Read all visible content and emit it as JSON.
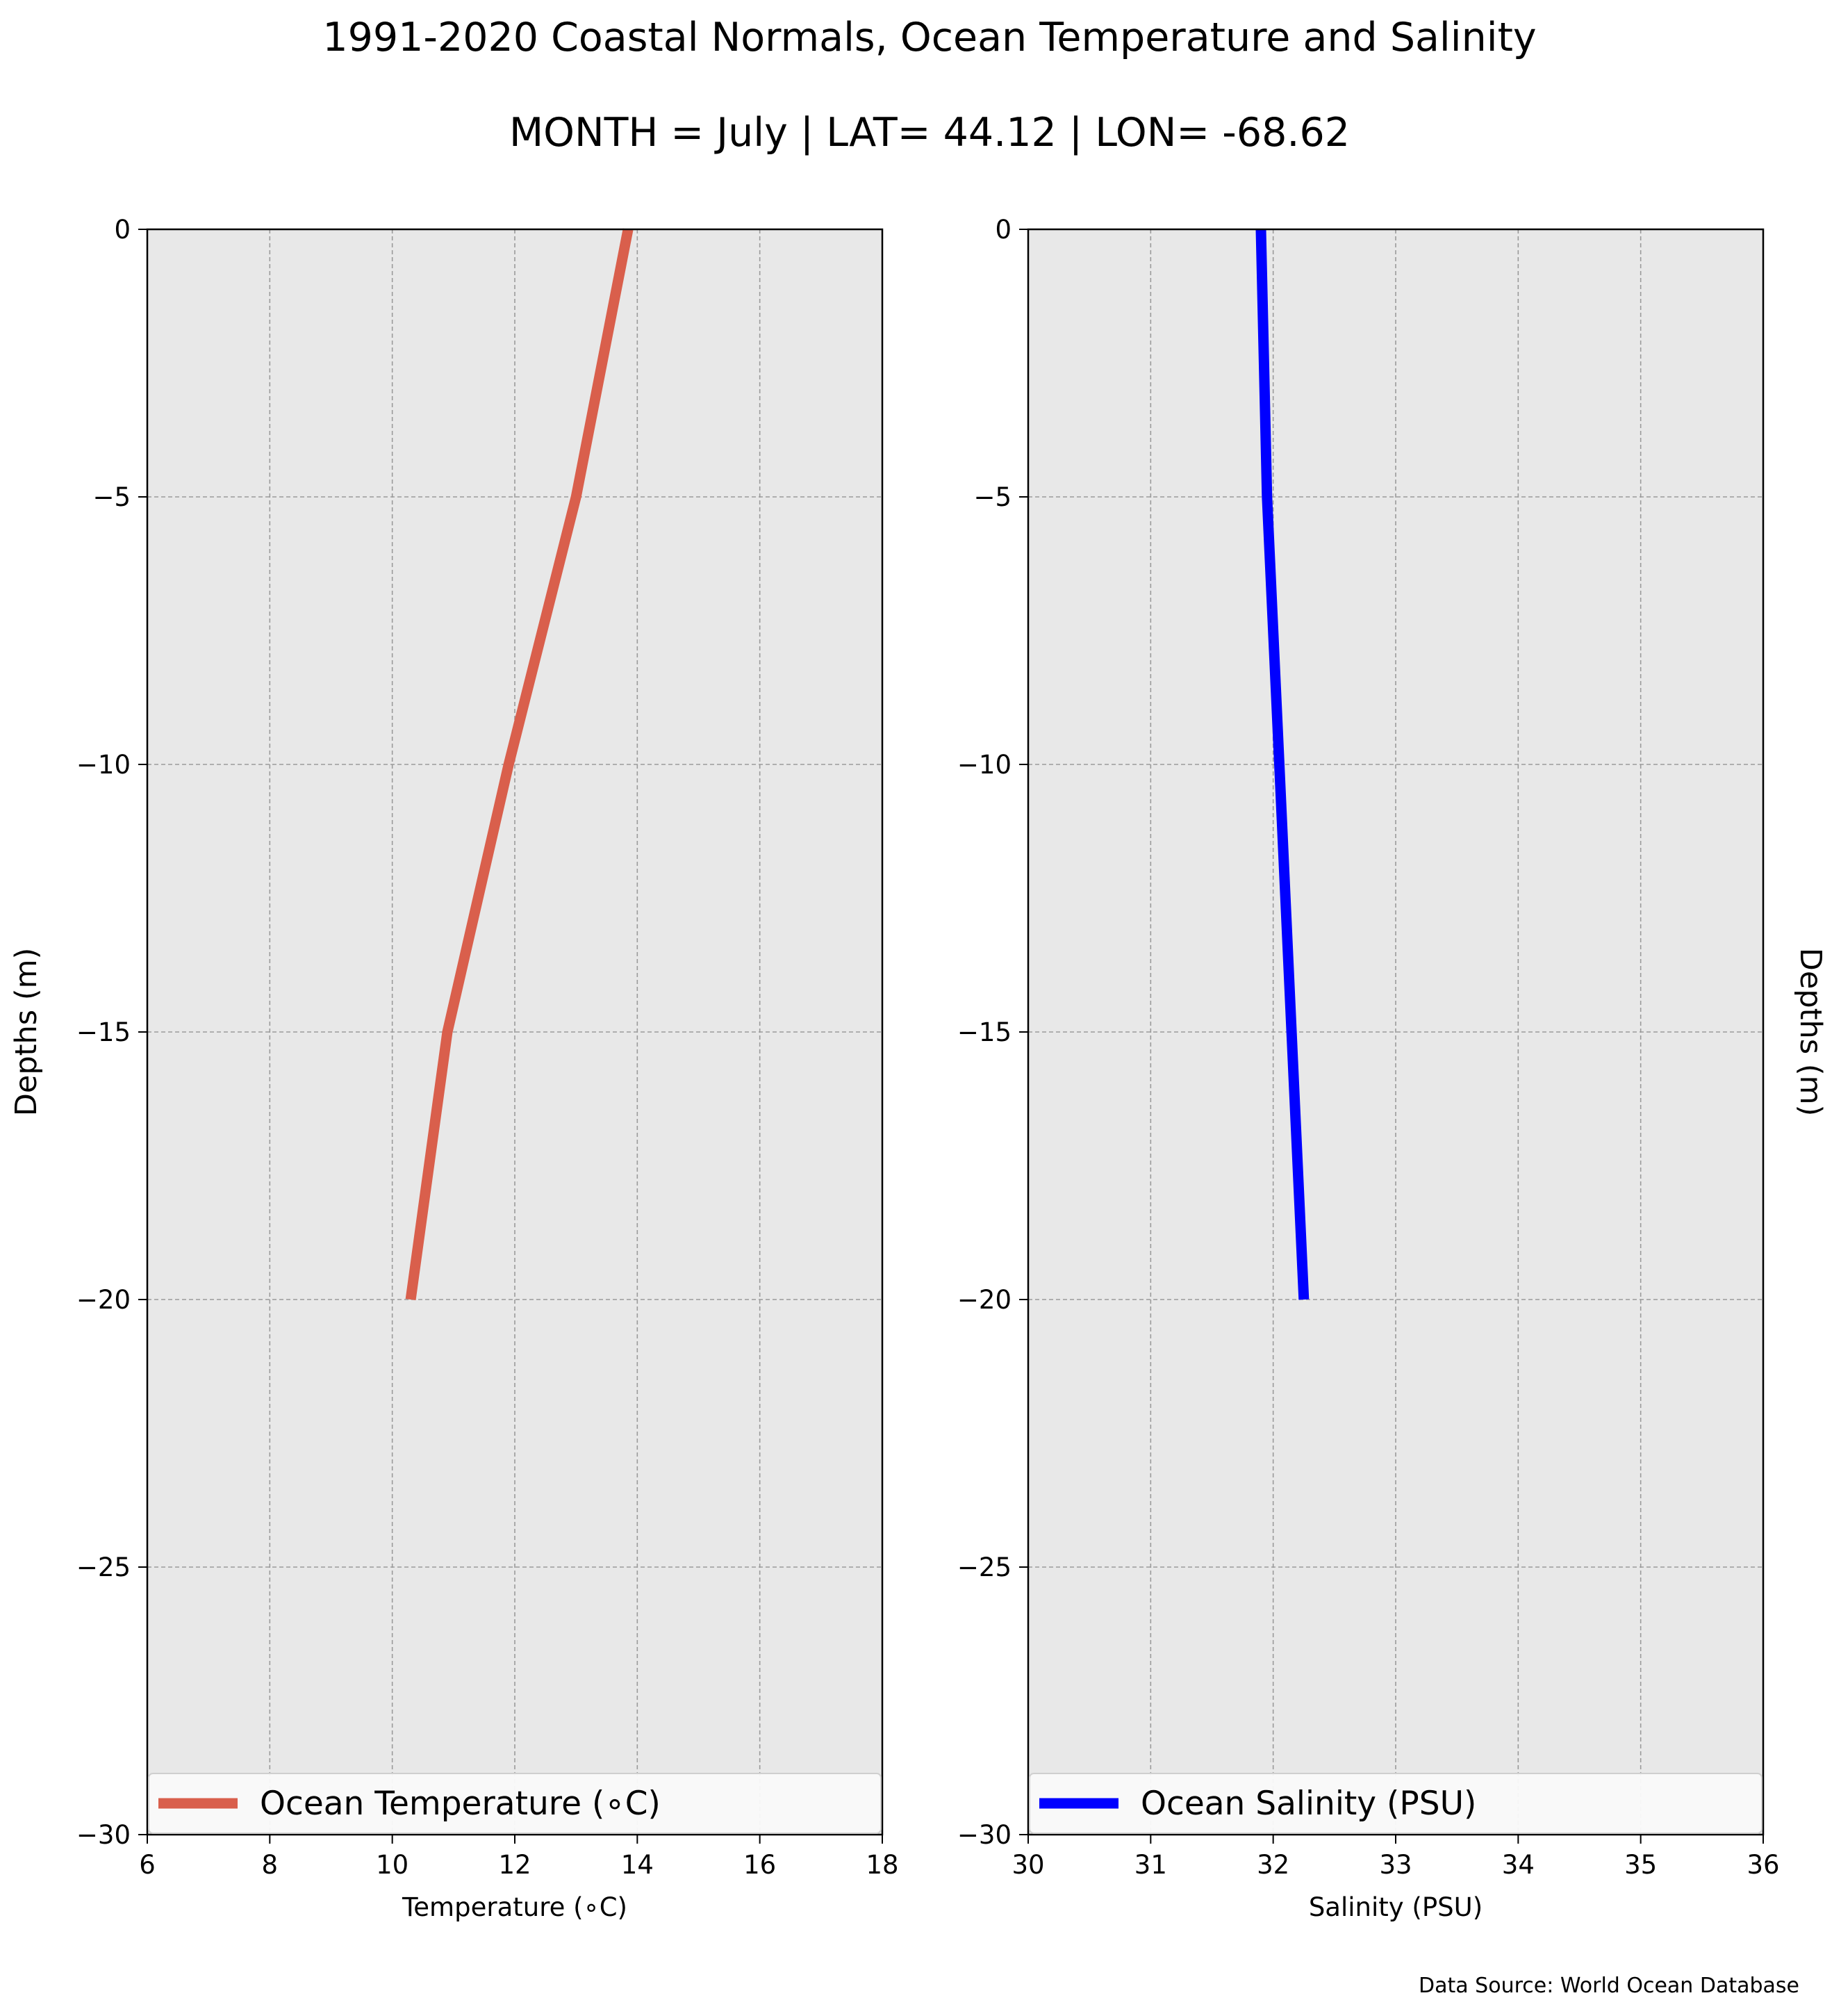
{
  "figure": {
    "title": "1991-2020 Coastal Normals, Ocean Temperature and Salinity",
    "subtitle": "MONTH = July | LAT= 44.12 | LON= -68.62",
    "source_note": "Data Source: World Ocean Database"
  },
  "chart_data": [
    {
      "type": "line",
      "xlabel": "Temperature (∘C)",
      "ylabel": "Depths (m)",
      "xlim": [
        6,
        18
      ],
      "ylim": [
        -30,
        0
      ],
      "xticks": [
        6,
        8,
        10,
        12,
        14,
        16,
        18
      ],
      "xtick_labels": [
        "6",
        "8",
        "10",
        "12",
        "14",
        "16",
        "18"
      ],
      "yticks": [
        0,
        -5,
        -10,
        -15,
        -20,
        -25,
        -30
      ],
      "ytick_labels": [
        "0",
        "−5",
        "−10",
        "−15",
        "−20",
        "−25",
        "−30"
      ],
      "grid": true,
      "background": "#e8e8e8",
      "legend_placement": "lower-center",
      "series": [
        {
          "name": "Ocean Temperature (∘C)",
          "color": "#d95f4c",
          "x": [
            13.85,
            13.0,
            11.9,
            10.9,
            10.3
          ],
          "y": [
            0,
            -5,
            -10,
            -15,
            -20
          ]
        }
      ]
    },
    {
      "type": "line",
      "xlabel": "Salinity (PSU)",
      "ylabel": "Depths (m)",
      "xlim": [
        30,
        36
      ],
      "ylim": [
        -30,
        0
      ],
      "xticks": [
        30,
        31,
        32,
        33,
        34,
        35,
        36
      ],
      "xtick_labels": [
        "30",
        "31",
        "32",
        "33",
        "34",
        "35",
        "36"
      ],
      "yticks": [
        0,
        -5,
        -10,
        -15,
        -20,
        -25,
        -30
      ],
      "ytick_labels": [
        "0",
        "−5",
        "−10",
        "−15",
        "−20",
        "−25",
        "−30"
      ],
      "grid": true,
      "background": "#e8e8e8",
      "legend_placement": "lower-center",
      "series": [
        {
          "name": "Ocean Salinity (PSU)",
          "color": "#0000ff",
          "x": [
            31.9,
            31.95,
            32.05,
            32.15,
            32.25
          ],
          "y": [
            0,
            -5,
            -10,
            -15,
            -20
          ]
        }
      ]
    }
  ]
}
